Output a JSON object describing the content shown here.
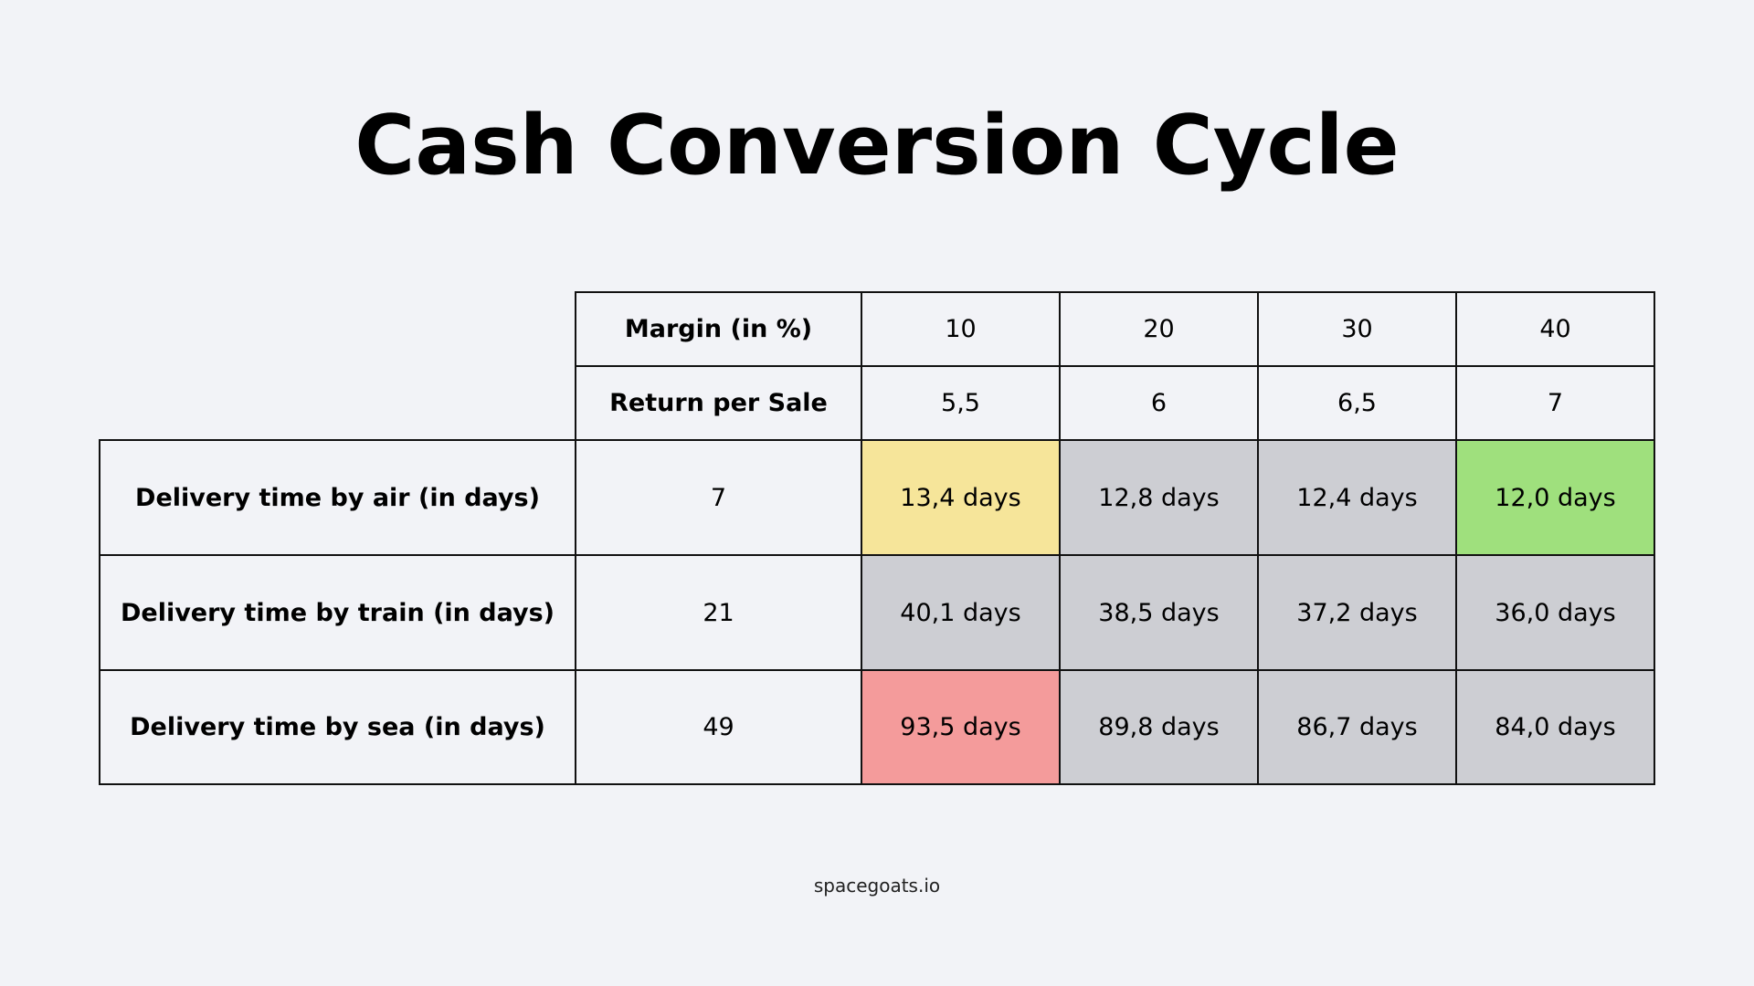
{
  "title": "Cash Conversion Cycle",
  "footer": "spacegoats.io",
  "colors": {
    "background": "#f2f3f7",
    "neutral": "#cdced3",
    "yellow": "#f6e59a",
    "green": "#9fe07d",
    "red": "#f49b9b"
  },
  "table": {
    "header_rows": [
      {
        "label": "Margin (in %)",
        "values": [
          "10",
          "20",
          "30",
          "40"
        ]
      },
      {
        "label": "Return per Sale",
        "values": [
          "5,5",
          "6",
          "6,5",
          "7"
        ]
      }
    ],
    "rows": [
      {
        "label": "Delivery time by air (in days)",
        "base": "7",
        "cells": [
          {
            "text": "13,4 days",
            "color": "#f6e59a"
          },
          {
            "text": "12,8 days",
            "color": "#cdced3"
          },
          {
            "text": "12,4 days",
            "color": "#cdced3"
          },
          {
            "text": "12,0 days",
            "color": "#9fe07d"
          }
        ]
      },
      {
        "label": "Delivery time by train (in days)",
        "base": "21",
        "cells": [
          {
            "text": "40,1 days",
            "color": "#cdced3"
          },
          {
            "text": "38,5 days",
            "color": "#cdced3"
          },
          {
            "text": "37,2 days",
            "color": "#cdced3"
          },
          {
            "text": "36,0 days",
            "color": "#cdced3"
          }
        ]
      },
      {
        "label": "Delivery time by sea (in days)",
        "base": "49",
        "cells": [
          {
            "text": "93,5 days",
            "color": "#f49b9b"
          },
          {
            "text": "89,8 days",
            "color": "#cdced3"
          },
          {
            "text": "86,7 days",
            "color": "#cdced3"
          },
          {
            "text": "84,0 days",
            "color": "#cdced3"
          }
        ]
      }
    ]
  }
}
